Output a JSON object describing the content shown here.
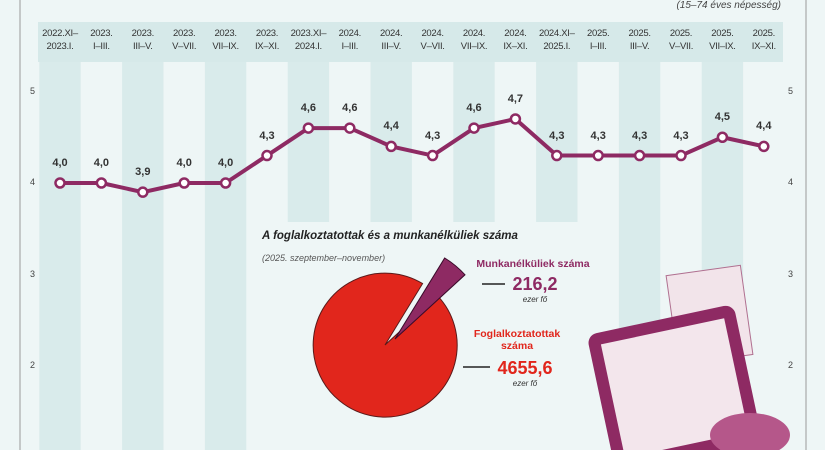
{
  "chart_data": [
    {
      "type": "line",
      "unit_note": "(15–74 éves népesség)",
      "categories": [
        "2022.XI–2023.I.",
        "2023. I–III.",
        "2023. III–V.",
        "2023. V–VII.",
        "2023. VII–IX.",
        "2023. IX–XI.",
        "2023.XI–2024.I.",
        "2024. I–III.",
        "2024. III–V.",
        "2024. V–VII.",
        "2024. VII–IX.",
        "2024. IX–XI.",
        "2024.XI–2025.I.",
        "2025. I–III.",
        "2025. III–V.",
        "2025. V–VII.",
        "2025. VII–IX.",
        "2025. IX–XI."
      ],
      "values": [
        4.0,
        4.0,
        3.9,
        4.0,
        4.0,
        4.3,
        4.6,
        4.6,
        4.4,
        4.3,
        4.6,
        4.7,
        4.3,
        4.3,
        4.3,
        4.3,
        4.5,
        4.4
      ],
      "labels": [
        "4,0",
        "4,0",
        "3,9",
        "4,0",
        "4,0",
        "4,3",
        "4,6",
        "4,6",
        "4,4",
        "4,3",
        "4,6",
        "4,7",
        "4,3",
        "4,3",
        "4,3",
        "4,3",
        "4,5",
        "4,4"
      ],
      "yticks": [
        "5",
        "4",
        "3",
        "2"
      ],
      "ylim": [
        1.3,
        5.6
      ],
      "grid": false,
      "color": "#8e2a63"
    },
    {
      "type": "pie",
      "title": "A foglalkoztatottak és a munkanélküliek száma",
      "subtitle": "(2025. szeptember–november)",
      "slices": [
        {
          "name": "Munkanélküliek száma",
          "value": 216.2,
          "label": "216,2",
          "unit": "ezer fő",
          "color": "#8e2a63"
        },
        {
          "name": "Foglalkoztatottak száma",
          "value": 4655.6,
          "label": "4655,6",
          "unit": "ezer fő",
          "color": "#e1261c"
        }
      ]
    }
  ]
}
